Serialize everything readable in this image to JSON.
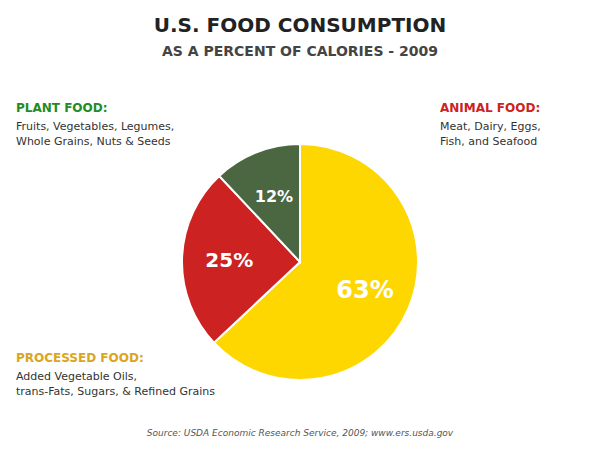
{
  "chart_data": {
    "type": "pie",
    "title": "U.S. FOOD CONSUMPTION",
    "subtitle": "AS A PERCENT OF CALORIES - 2009",
    "values": [
      63,
      25,
      12
    ],
    "value_labels": [
      "63%",
      "25%",
      "12%"
    ],
    "colors": [
      "#FFD700",
      "#CC2222",
      "#4a6741"
    ],
    "data_labels": true,
    "annotations": [
      {
        "label": "PLANT FOOD:",
        "color": "#228B22",
        "lines": [
          "Fruits, Vegetables, Legumes,",
          "Whole Grains, Nuts & Seeds"
        ]
      },
      {
        "label": "ANIMAL FOOD:",
        "color": "#CC2222",
        "lines": [
          "Meat, Dairy, Eggs,",
          "Fish, and Seafood"
        ]
      },
      {
        "label": "PROCESSED FOOD:",
        "color": "#DAA520",
        "lines": [
          "Added Vegetable Oils,",
          "trans-Fats, Sugars, & Refined Grains"
        ]
      },
      {
        "text": "Source: USDA Economic Research Service, 2009; www.ers.usda.gov"
      }
    ]
  }
}
